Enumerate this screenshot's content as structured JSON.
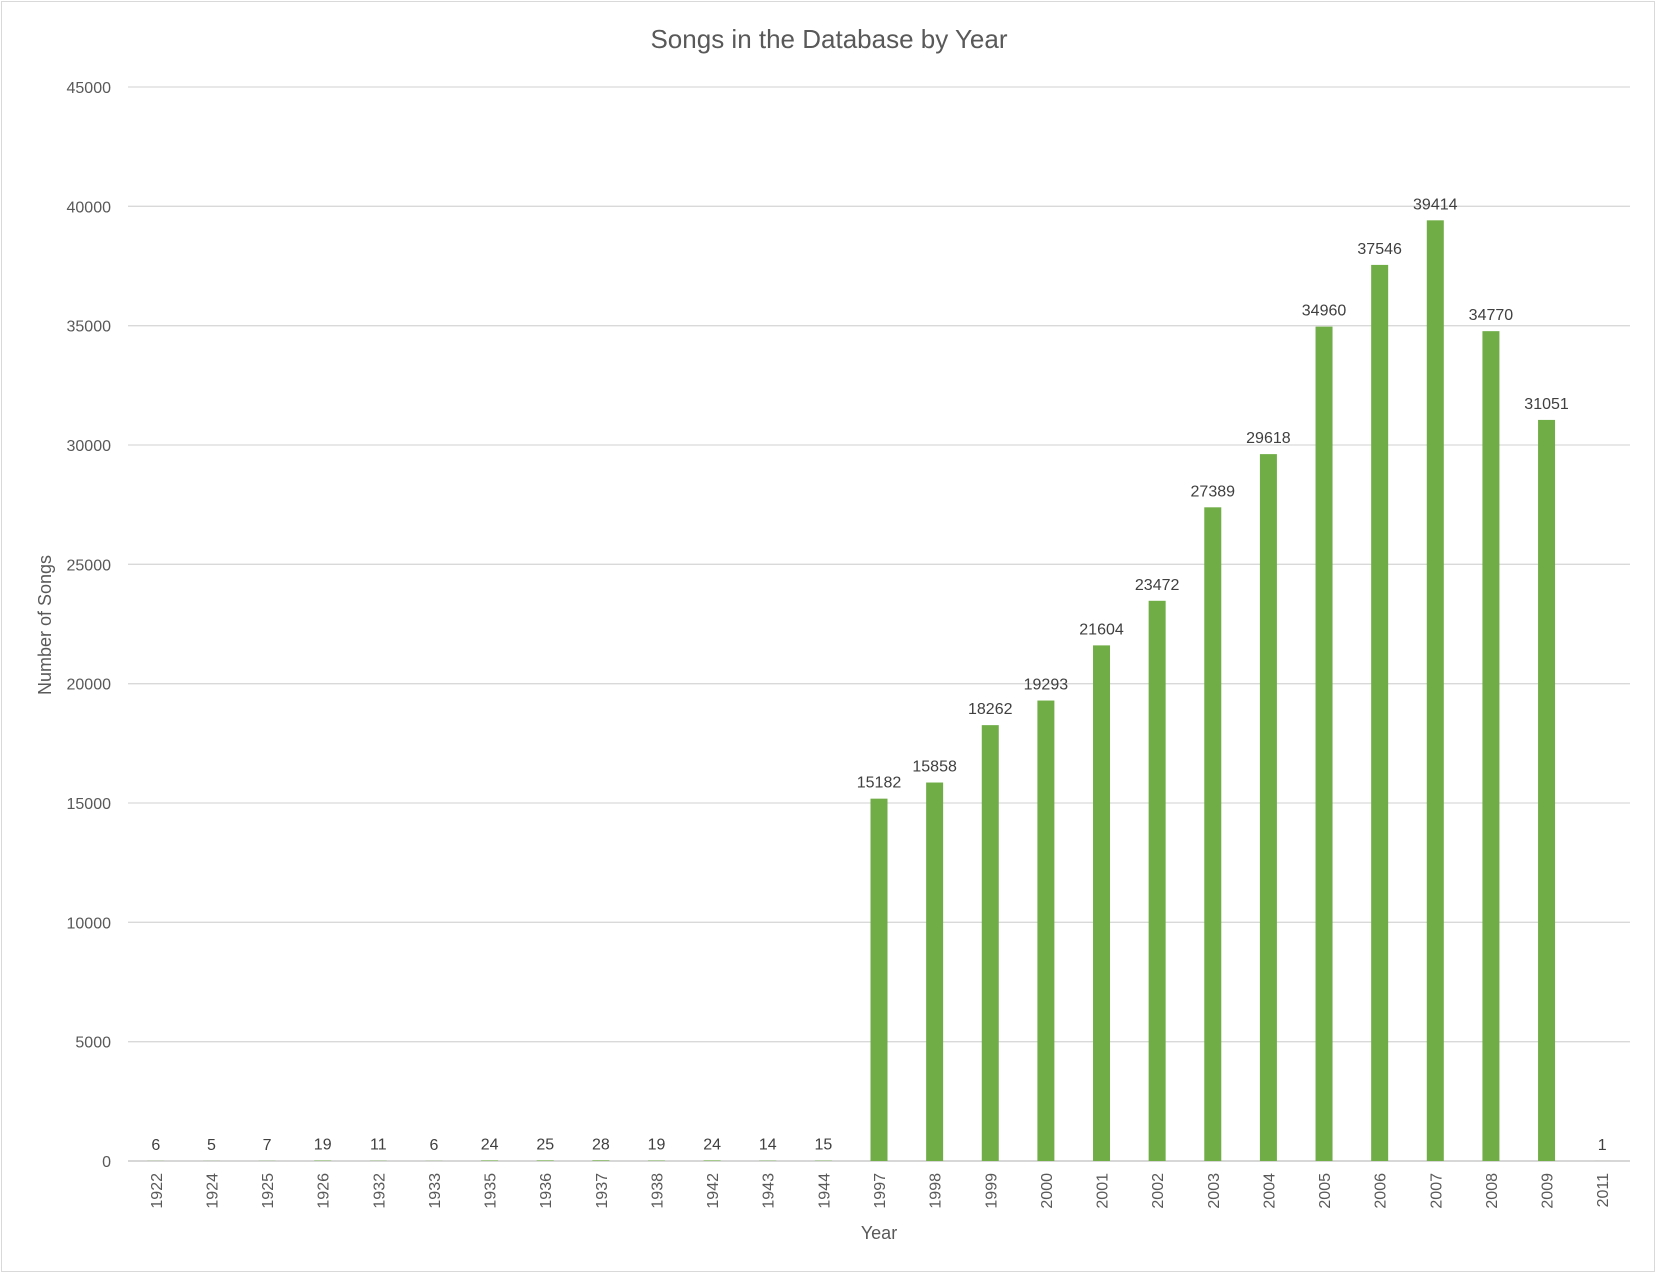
{
  "chart_data": {
    "type": "bar",
    "title": "Songs in the Database by Year",
    "xlabel": "Year",
    "ylabel": "Number of Songs",
    "ylim": [
      0,
      45000
    ],
    "yticks": [
      "0",
      "5000",
      "10000",
      "15000",
      "20000",
      "25000",
      "30000",
      "35000",
      "40000",
      "45000"
    ],
    "grid": true,
    "bar_color": "#70ad47",
    "categories": [
      "1922",
      "1924",
      "1925",
      "1926",
      "1932",
      "1933",
      "1935",
      "1936",
      "1937",
      "1938",
      "1942",
      "1943",
      "1944",
      "1997",
      "1998",
      "1999",
      "2000",
      "2001",
      "2002",
      "2003",
      "2004",
      "2005",
      "2006",
      "2007",
      "2008",
      "2009",
      "2011"
    ],
    "values": [
      6,
      5,
      7,
      19,
      11,
      6,
      24,
      25,
      28,
      19,
      24,
      14,
      15,
      15182,
      15858,
      18262,
      19293,
      21604,
      23472,
      27389,
      29618,
      34960,
      37546,
      39414,
      34770,
      31051,
      1
    ]
  }
}
